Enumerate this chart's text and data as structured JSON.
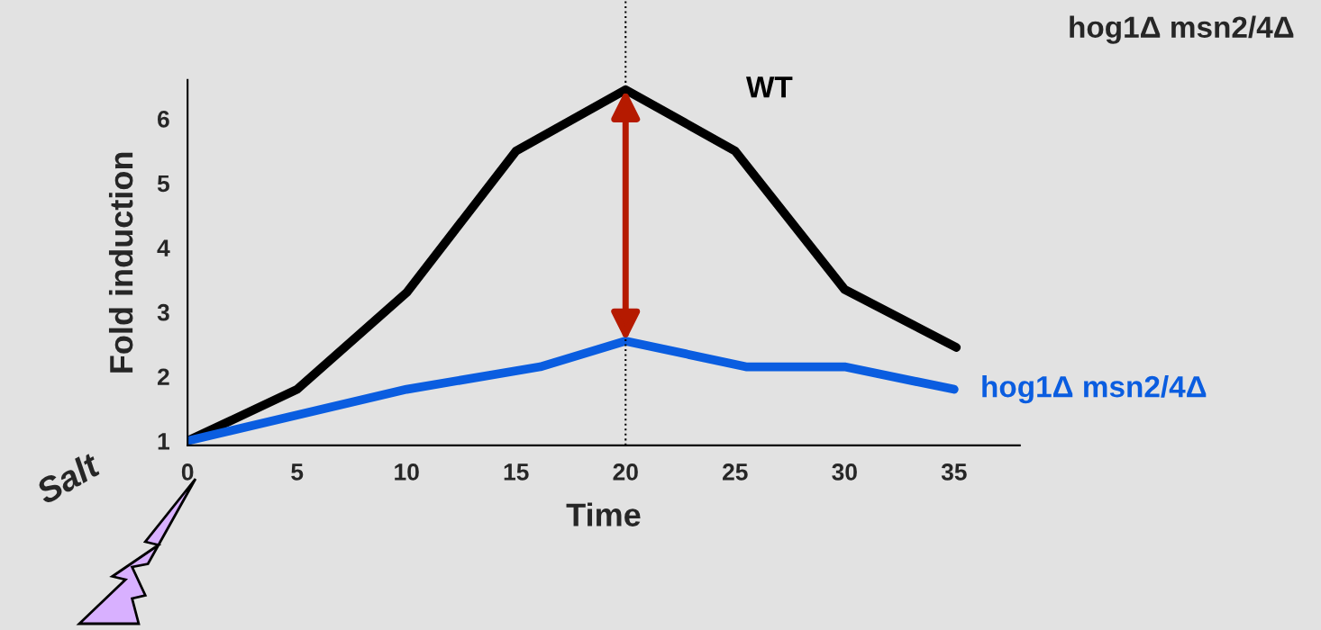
{
  "chart_data": {
    "type": "line",
    "title": "hog1Δ msn2/4Δ",
    "xlabel": "Time",
    "ylabel": "Fold induction",
    "xlim": [
      0,
      38
    ],
    "xticks": [
      0,
      5,
      10,
      15,
      20,
      25,
      30,
      35
    ],
    "ylim": [
      0.93,
      6.6
    ],
    "yticks": [
      1,
      2,
      3,
      4,
      5,
      6
    ],
    "series": [
      {
        "name": "WT",
        "color": "#000000",
        "x": [
          0,
          5,
          10,
          15,
          20,
          25,
          30,
          35.1
        ],
        "values": [
          1,
          1.8,
          3.3,
          5.5,
          6.45,
          5.5,
          3.35,
          2.45
        ]
      },
      {
        "name": "hog1Δ msn2/4Δ",
        "color": "#0a5de0",
        "x": [
          0,
          10,
          16.1,
          20,
          25.5,
          30,
          35
        ],
        "values": [
          1,
          1.8,
          2.15,
          2.55,
          2.15,
          2.15,
          1.8
        ]
      }
    ],
    "ref_lines": [
      {
        "axis": "x",
        "value": 20,
        "line_style": "dotted",
        "color": "#000000"
      }
    ],
    "annotations": [
      "Salt"
    ],
    "grid": false
  }
}
